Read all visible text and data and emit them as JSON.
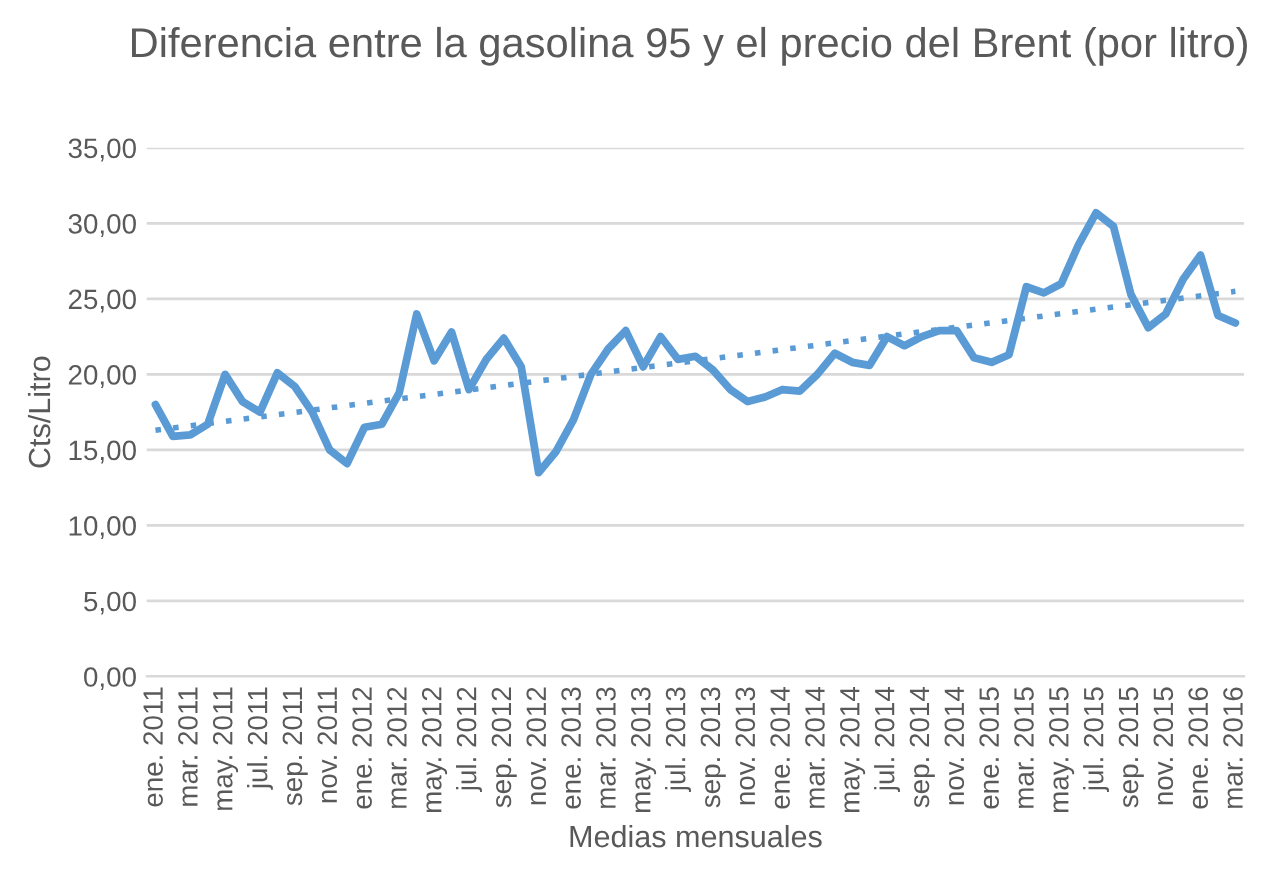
{
  "chart_data": {
    "type": "line",
    "title": "Diferencia entre la gasolina 95 y el precio del Brent (por litro)",
    "xlabel": "Medias mensuales",
    "ylabel": "Cts/Litro",
    "categories": [
      "ene. 2011",
      null,
      "mar. 2011",
      null,
      "may. 2011",
      null,
      "jul. 2011",
      null,
      "sep. 2011",
      null,
      "nov. 2011",
      null,
      "ene. 2012",
      null,
      "mar. 2012",
      null,
      "may. 2012",
      null,
      "jul. 2012",
      null,
      "sep. 2012",
      null,
      "nov. 2012",
      null,
      "ene. 2013",
      null,
      "mar. 2013",
      null,
      "may. 2013",
      null,
      "jul. 2013",
      null,
      "sep. 2013",
      null,
      "nov. 2013",
      null,
      "ene. 2014",
      null,
      "mar. 2014",
      null,
      "may. 2014",
      null,
      "jul. 2014",
      null,
      "sep. 2014",
      null,
      "nov. 2014",
      null,
      "ene. 2015",
      null,
      "mar. 2015",
      null,
      "may. 2015",
      null,
      "jul. 2015",
      null,
      "sep. 2015",
      null,
      "nov. 2015",
      null,
      "ene. 2016",
      null,
      "mar. 2016"
    ],
    "series": [
      {
        "color": "#5b9bd5",
        "line_style": "solid",
        "values": [
          18.0,
          15.9,
          16.0,
          16.7,
          20.0,
          18.2,
          17.5,
          20.1,
          19.2,
          17.5,
          15.0,
          14.1,
          16.5,
          16.7,
          18.8,
          24.0,
          20.9,
          22.8,
          19.0,
          21.0,
          22.4,
          20.5,
          13.5,
          14.9,
          17.0,
          20.0,
          21.7,
          22.9,
          20.5,
          22.5,
          21.0,
          21.2,
          20.3,
          19.0,
          18.2,
          18.5,
          19.0,
          18.9,
          20.0,
          21.4,
          20.8,
          20.6,
          22.5,
          21.9,
          22.5,
          22.9,
          22.9,
          21.1,
          20.8,
          21.3,
          25.8,
          25.4,
          26.0,
          28.6,
          30.7,
          29.8,
          25.3,
          23.1,
          24.0,
          26.3,
          27.9,
          23.9,
          23.4
        ]
      },
      {
        "color": "#5b9bd5",
        "line_style": "dotted",
        "values": [
          16.3,
          null,
          null,
          null,
          null,
          null,
          null,
          null,
          null,
          null,
          null,
          null,
          null,
          null,
          null,
          null,
          null,
          null,
          null,
          null,
          null,
          null,
          null,
          null,
          null,
          null,
          null,
          null,
          null,
          null,
          null,
          null,
          null,
          null,
          null,
          null,
          null,
          null,
          null,
          null,
          null,
          null,
          null,
          null,
          null,
          null,
          null,
          null,
          null,
          null,
          null,
          null,
          null,
          null,
          null,
          null,
          null,
          null,
          null,
          null,
          null,
          null,
          25.5
        ]
      }
    ],
    "ylim": [
      0,
      35
    ],
    "yticks": [
      {
        "value": 0,
        "label": "0,00"
      },
      {
        "value": 5,
        "label": "5,00"
      },
      {
        "value": 10,
        "label": "10,00"
      },
      {
        "value": 15,
        "label": "15,00"
      },
      {
        "value": 20,
        "label": "20,00"
      },
      {
        "value": 25,
        "label": "25,00"
      },
      {
        "value": 30,
        "label": "30,00"
      },
      {
        "value": 35,
        "label": "35,00"
      }
    ],
    "grid": "y",
    "legend": false,
    "marker": "none"
  }
}
